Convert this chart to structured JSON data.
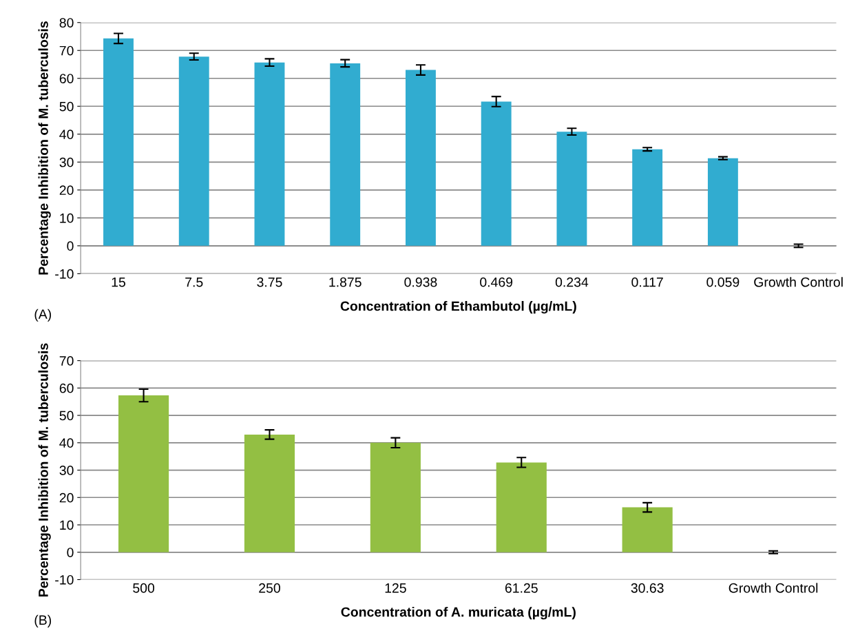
{
  "chart_data": [
    {
      "type": "bar",
      "xlabel": "Concentration of Ethambutol (µg/mL)",
      "ylabel": "Percentage Inhibition of M. tuberculosis",
      "categories": [
        "15",
        "7.5",
        "3.75",
        "1.875",
        "0.938",
        "0.469",
        "0.234",
        "0.117",
        "0.059",
        "Growth Control"
      ],
      "values": [
        74.3,
        67.8,
        65.7,
        65.4,
        63.0,
        51.7,
        40.9,
        34.6,
        31.4,
        0
      ],
      "errors": [
        1.8,
        1.2,
        1.3,
        1.3,
        1.8,
        1.8,
        1.2,
        0.6,
        0.5,
        0.6
      ],
      "color": "#31acd0",
      "ylim": [
        -10,
        80
      ],
      "yticks": [
        -10,
        0,
        10,
        20,
        30,
        40,
        50,
        60,
        70,
        80
      ],
      "grid": "y",
      "legend": false,
      "annotations": [
        "(A)"
      ]
    },
    {
      "type": "bar",
      "xlabel": "Concentration of A. muricata (µg/mL)",
      "ylabel": "Percentage Inhibition of M. tuberculosis",
      "categories": [
        "500",
        "250",
        "125",
        "61.25",
        "30.63",
        "Growth Control"
      ],
      "values": [
        57.3,
        43.0,
        40.0,
        32.8,
        16.4,
        0
      ],
      "errors": [
        2.3,
        1.7,
        1.8,
        1.8,
        1.7,
        0.5
      ],
      "color": "#93bf43",
      "ylim": [
        -10,
        70
      ],
      "yticks": [
        -10,
        0,
        10,
        20,
        30,
        40,
        50,
        60,
        70
      ],
      "grid": "y",
      "legend": false,
      "annotations": [
        "(B)"
      ]
    }
  ]
}
